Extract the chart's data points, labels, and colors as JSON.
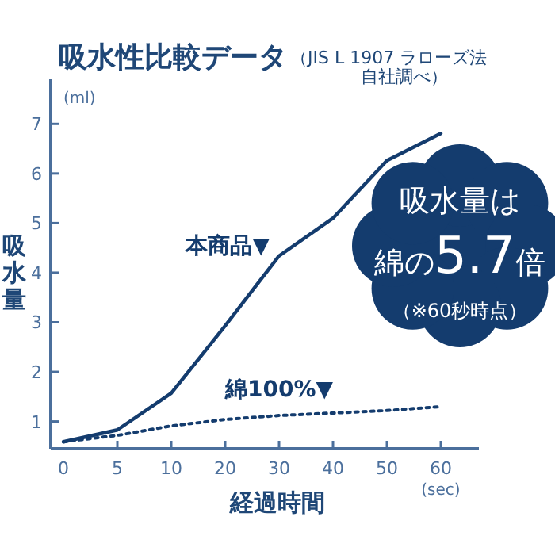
{
  "chart_data": {
    "type": "line",
    "title": "吸水性比較データ",
    "subtitle": "（JIS L 1907 ラローズ法自社調べ）",
    "xlabel": "経過時間",
    "ylabel": "吸水量",
    "categories": [
      "0",
      "5",
      "10",
      "20",
      "30",
      "40",
      "50",
      "60"
    ],
    "series": [
      {
        "name": "本商品▼",
        "color": "#143c6e",
        "line_style": "solid",
        "values": [
          0.59,
          0.83,
          1.57,
          2.93,
          4.34,
          5.1,
          6.26,
          6.81
        ]
      },
      {
        "name": "綿100%▼",
        "color": "#143c6e",
        "line_style": "dotted",
        "values": [
          0.59,
          0.72,
          0.91,
          1.04,
          1.12,
          1.17,
          1.22,
          1.3
        ]
      }
    ],
    "ylim": [
      0.45,
      7.9
    ],
    "yticks": [
      1,
      2,
      3,
      4,
      5,
      6,
      7
    ],
    "grid": false,
    "legend": false,
    "annotations": [
      "(ml)",
      "(sec)",
      "吸水量は",
      "綿の5.7倍",
      "（※60秒時点）"
    ]
  }
}
